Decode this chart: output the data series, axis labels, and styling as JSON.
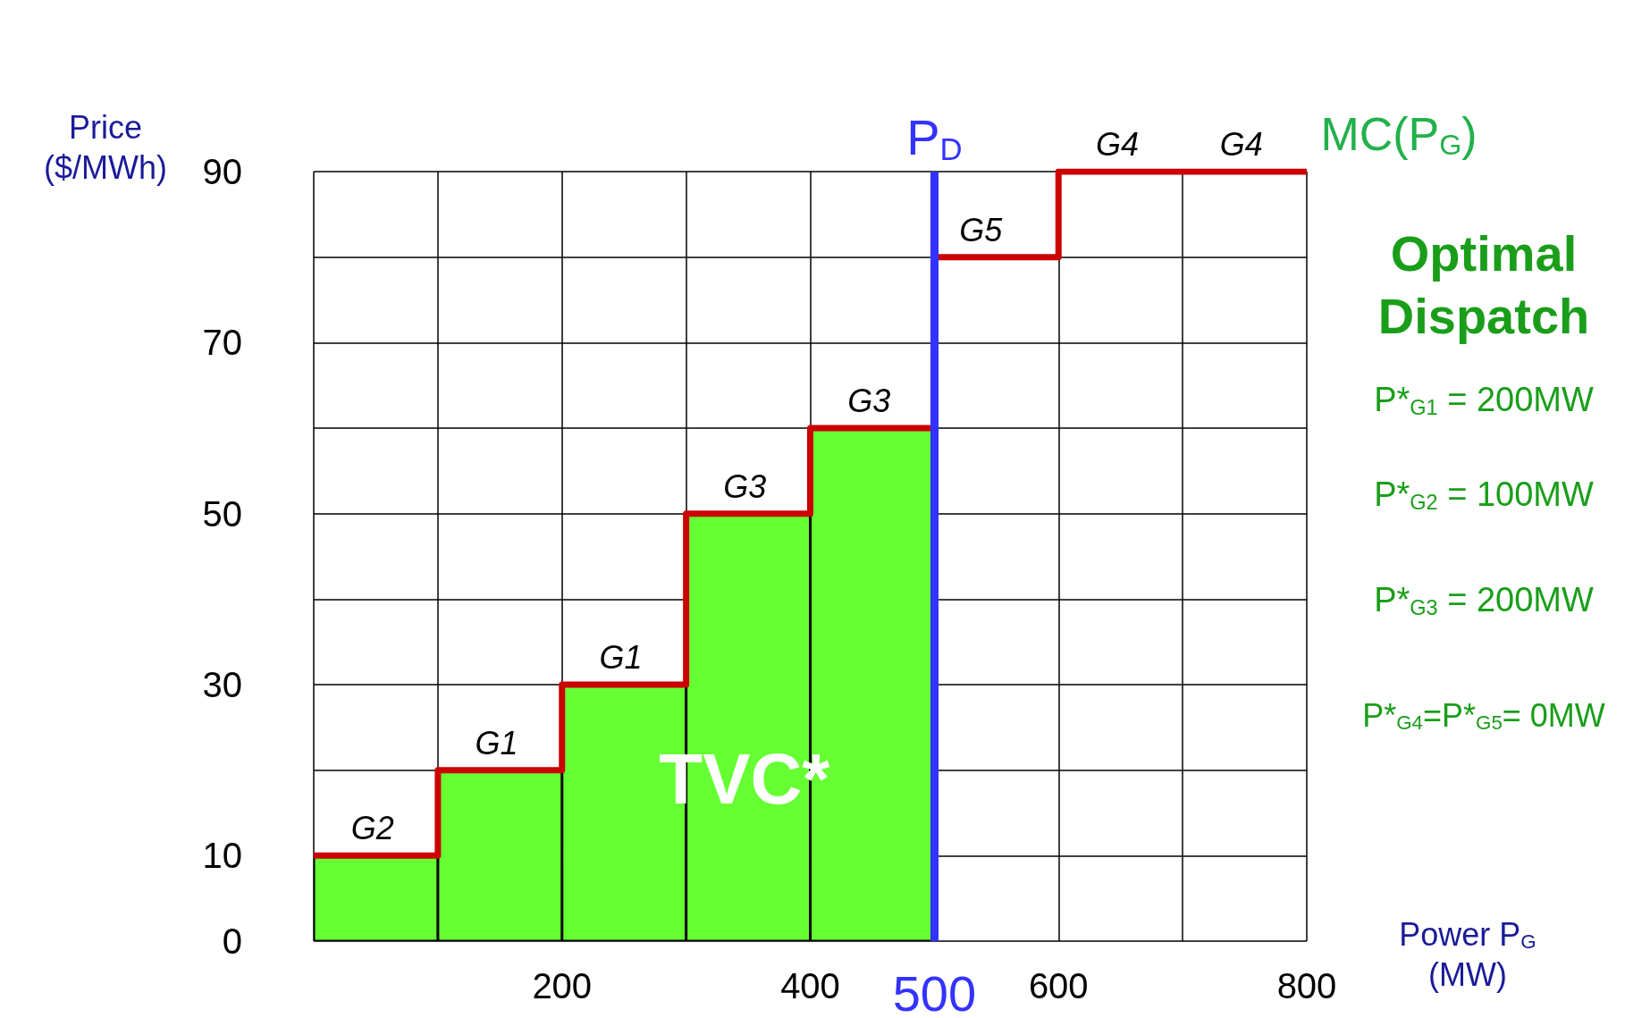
{
  "chart_data": {
    "type": "step",
    "xlabel": "Power P$_{G}$\n(MW)",
    "ylabel": "Price\n($/MWh)",
    "xlim": [
      0,
      800
    ],
    "ylim": [
      0,
      90
    ],
    "xticks": [
      {
        "value": 0,
        "label": null
      },
      {
        "value": 100,
        "label": null
      },
      200,
      {
        "value": 300,
        "label": null
      },
      400,
      500,
      600,
      {
        "value": 700,
        "label": null
      },
      800
    ],
    "yticks": [
      0,
      10,
      {
        "value": 20,
        "label": null
      },
      30,
      {
        "value": 40,
        "label": null
      },
      50,
      {
        "value": 60,
        "label": null
      },
      70,
      {
        "value": 80,
        "label": null
      },
      90
    ],
    "grid": true,
    "series": [
      {
        "type": "bar",
        "color": "#66ff33",
        "x": [
          50,
          150,
          250,
          350,
          450
        ],
        "values": [
          10,
          20,
          30,
          50,
          60
        ]
      },
      {
        "name": "MC(P$_{G}$)",
        "color": "#cc0000",
        "x": [
          0,
          100,
          200,
          300,
          400,
          500,
          600,
          700,
          800
        ],
        "values": [
          10,
          20,
          30,
          50,
          60,
          80,
          90,
          90,
          90
        ]
      }
    ],
    "ref_lines": [
      {
        "axis": "x",
        "value": 500,
        "label": "P$_{D}$",
        "color": "#3333ff"
      }
    ],
    "annotations": [
      "TVC*",
      {
        "text": "G2",
        "x": 30,
        "y": 10
      },
      {
        "text": "G1",
        "x": 130,
        "y": 20
      },
      {
        "text": "G1",
        "x": 230,
        "y": 30
      },
      {
        "text": "G3",
        "x": 330,
        "y": 50
      },
      {
        "text": "G3",
        "x": 430,
        "y": 60
      },
      {
        "text": "G5",
        "x": 520,
        "y": 80
      },
      {
        "text": "G4",
        "x": 630,
        "y": 90
      },
      {
        "text": "G4",
        "x": 730,
        "y": 90
      },
      "Optimal\nDispatch",
      "P*$_{G1}$ = 200MW",
      "P*$_{G2}$ = 100MW",
      "P*$_{G3}$ = 200MW",
      "P*$_{G4}$=P*$_{G5}$= 0MW"
    ]
  }
}
